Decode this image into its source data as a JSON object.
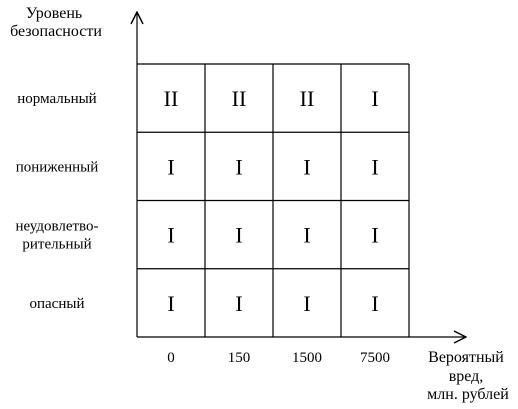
{
  "y_axis_title": [
    "Уровень",
    "безопасности"
  ],
  "x_axis_title": [
    "Вероятный",
    "вред,",
    "млн. рублей"
  ],
  "rows": [
    {
      "label": [
        "нормальный"
      ],
      "cells": [
        "II",
        "II",
        "II",
        "I"
      ]
    },
    {
      "label": [
        "пониженный"
      ],
      "cells": [
        "I",
        "I",
        "I",
        "I"
      ]
    },
    {
      "label": [
        "неудовлетво-",
        "рительный"
      ],
      "cells": [
        "I",
        "I",
        "I",
        "I"
      ]
    },
    {
      "label": [
        "опасный"
      ],
      "cells": [
        "I",
        "I",
        "I",
        "I"
      ]
    }
  ],
  "columns": [
    "0",
    "150",
    "1500",
    "7500"
  ]
}
